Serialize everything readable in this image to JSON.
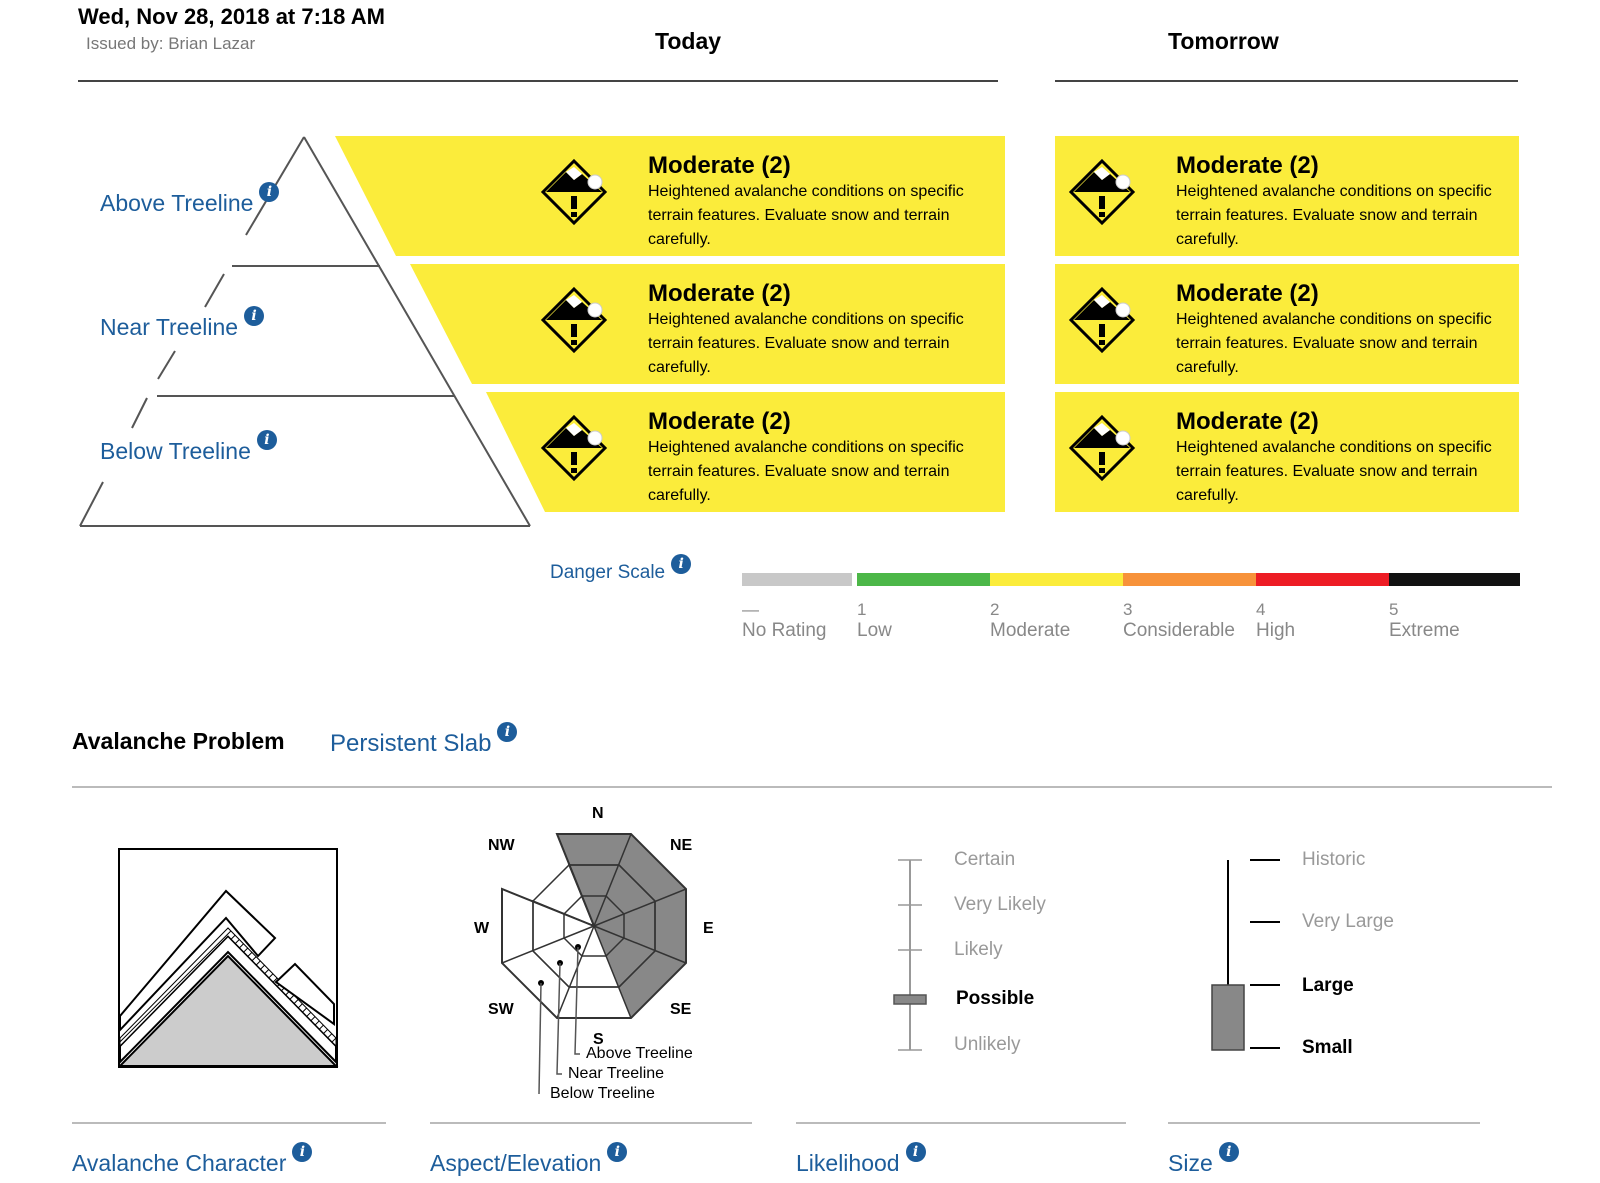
{
  "header": {
    "date": "Wed, Nov 28, 2018 at 7:18 AM",
    "issued_by": "Issued by: Brian Lazar",
    "today": "Today",
    "tomorrow": "Tomorrow"
  },
  "elevations": [
    {
      "label": "Above Treeline",
      "info_icon": "info-icon"
    },
    {
      "label": "Near Treeline",
      "info_icon": "info-icon"
    },
    {
      "label": "Below Treeline",
      "info_icon": "info-icon"
    }
  ],
  "danger": {
    "title": "Moderate (2)",
    "description": "Heightened avalanche conditions on specific terrain features. Evaluate snow and terrain carefully.",
    "color": "#fbec3b",
    "icon": "moderate-danger-icon"
  },
  "danger_scale": {
    "label": "Danger Scale",
    "levels": [
      {
        "num": "—",
        "name": "No Rating",
        "color": "#c8c8c8"
      },
      {
        "num": "1",
        "name": "Low",
        "color": "#4cb748"
      },
      {
        "num": "2",
        "name": "Moderate",
        "color": "#fbec3b"
      },
      {
        "num": "3",
        "name": "Considerable",
        "color": "#f7923a"
      },
      {
        "num": "4",
        "name": "High",
        "color": "#ed1c24"
      },
      {
        "num": "5",
        "name": "Extreme",
        "color": "#111111"
      }
    ]
  },
  "problem": {
    "heading": "Avalanche Problem",
    "type": "Persistent Slab"
  },
  "rose": {
    "directions": [
      "N",
      "NE",
      "E",
      "SE",
      "S",
      "SW",
      "W",
      "NW"
    ],
    "legend": [
      "Above Treeline",
      "Near Treeline",
      "Below Treeline"
    ]
  },
  "likelihood": {
    "levels": [
      "Certain",
      "Very Likely",
      "Likely",
      "Possible",
      "Unlikely"
    ],
    "selected": "Possible"
  },
  "size": {
    "levels": [
      "Historic",
      "Very Large",
      "Large",
      "Small"
    ],
    "range": [
      "Small",
      "Large"
    ]
  },
  "footer": {
    "character": "Avalanche Character",
    "aspect": "Aspect/Elevation",
    "likelihood": "Likelihood",
    "size": "Size"
  }
}
